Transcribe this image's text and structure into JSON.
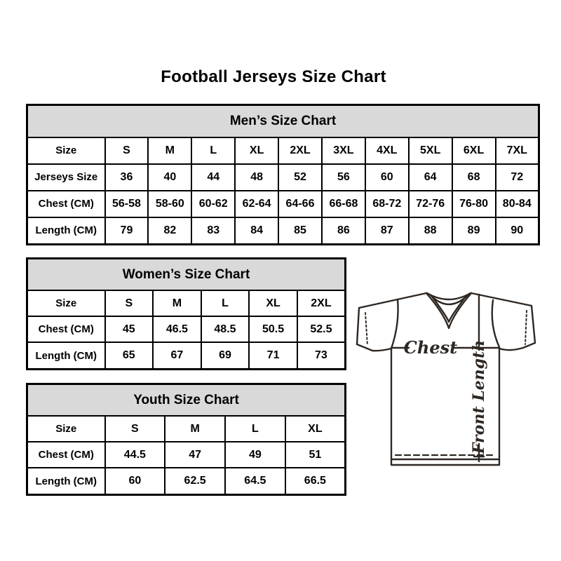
{
  "page": {
    "title": "Football Jerseys Size Chart"
  },
  "chart_data": [
    {
      "type": "table",
      "title": "Men’s Size Chart",
      "rows": [
        [
          "Size",
          "S",
          "M",
          "L",
          "XL",
          "2XL",
          "3XL",
          "4XL",
          "5XL",
          "6XL",
          "7XL"
        ],
        [
          "Jerseys Size",
          "36",
          "40",
          "44",
          "48",
          "52",
          "56",
          "60",
          "64",
          "68",
          "72"
        ],
        [
          "Chest (CM)",
          "56-58",
          "58-60",
          "60-62",
          "62-64",
          "64-66",
          "66-68",
          "68-72",
          "72-76",
          "76-80",
          "80-84"
        ],
        [
          "Length (CM)",
          "79",
          "82",
          "83",
          "84",
          "85",
          "86",
          "87",
          "88",
          "89",
          "90"
        ]
      ]
    },
    {
      "type": "table",
      "title": "Women’s Size Chart",
      "rows": [
        [
          "Size",
          "S",
          "M",
          "L",
          "XL",
          "2XL"
        ],
        [
          "Chest (CM)",
          "45",
          "46.5",
          "48.5",
          "50.5",
          "52.5"
        ],
        [
          "Length (CM)",
          "65",
          "67",
          "69",
          "71",
          "73"
        ]
      ]
    },
    {
      "type": "table",
      "title": "Youth Size Chart",
      "rows": [
        [
          "Size",
          "S",
          "M",
          "L",
          "XL"
        ],
        [
          "Chest (CM)",
          "44.5",
          "47",
          "49",
          "51"
        ],
        [
          "Length (CM)",
          "60",
          "62.5",
          "64.5",
          "66.5"
        ]
      ]
    }
  ],
  "diagram": {
    "chest_label": "Chest",
    "front_length_label": "Front Length"
  },
  "colors": {
    "table_header_bg": "#d9d9d9",
    "table_border": "#000000",
    "text": "#000000",
    "jersey_line": "#2e2722",
    "background": "#ffffff"
  }
}
